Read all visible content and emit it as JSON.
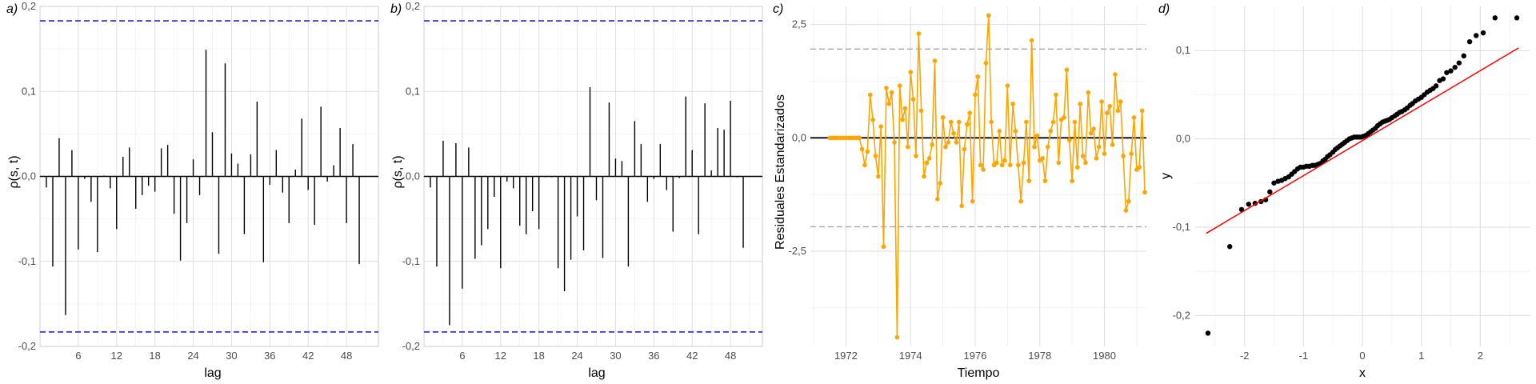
{
  "chart_data": [
    {
      "panel_tag": "a)",
      "type": "bar",
      "xlabel": "lag",
      "ylabel": "ρ(s, t)",
      "xlim": [
        0,
        53
      ],
      "ylim": [
        -0.2,
        0.2
      ],
      "x_ticks": [
        6,
        12,
        18,
        24,
        30,
        36,
        42,
        48
      ],
      "y_ticks": [
        -0.2,
        -0.1,
        0.0,
        0.1,
        0.2
      ],
      "y_tick_labels": [
        "-0,2",
        "-0,1",
        "0,0",
        "0,1",
        "0,2"
      ],
      "x_tick_labels": [
        "6",
        "12",
        "18",
        "24",
        "30",
        "36",
        "42",
        "48"
      ],
      "confidence_bounds": [
        0.183,
        -0.183
      ],
      "confidence_color": "#2626e6",
      "x": [
        1,
        2,
        3,
        4,
        5,
        6,
        7,
        8,
        9,
        10,
        11,
        12,
        13,
        14,
        15,
        16,
        17,
        18,
        19,
        20,
        21,
        22,
        23,
        24,
        25,
        26,
        27,
        28,
        29,
        30,
        31,
        32,
        33,
        34,
        35,
        36,
        37,
        38,
        39,
        40,
        41,
        42,
        43,
        44,
        45,
        46,
        47,
        48,
        49,
        50
      ],
      "values": [
        -0.013,
        -0.106,
        0.045,
        -0.163,
        0.031,
        -0.086,
        -0.003,
        -0.03,
        -0.089,
        0.001,
        -0.014,
        -0.062,
        0.023,
        0.034,
        -0.038,
        -0.022,
        -0.011,
        -0.018,
        0.033,
        0.037,
        -0.044,
        -0.099,
        -0.055,
        0.02,
        -0.022,
        0.149,
        0.052,
        -0.091,
        0.133,
        0.027,
        0.015,
        -0.068,
        0.026,
        0.088,
        -0.101,
        -0.01,
        0.031,
        -0.019,
        -0.055,
        0.008,
        0.068,
        -0.016,
        -0.057,
        0.082,
        -0.006,
        0.013,
        0.057,
        -0.055,
        0.038,
        -0.103
      ]
    },
    {
      "panel_tag": "b)",
      "type": "bar",
      "xlabel": "lag",
      "ylabel": "ρ(s, t)",
      "xlim": [
        0,
        53
      ],
      "ylim": [
        -0.2,
        0.2
      ],
      "x_ticks": [
        6,
        12,
        18,
        24,
        30,
        36,
        42,
        48
      ],
      "y_ticks": [
        -0.2,
        -0.1,
        0.0,
        0.1,
        0.2
      ],
      "y_tick_labels": [
        "-0,2",
        "-0,1",
        "0,0",
        "0,1",
        "0,2"
      ],
      "x_tick_labels": [
        "6",
        "12",
        "18",
        "24",
        "30",
        "36",
        "42",
        "48"
      ],
      "confidence_bounds": [
        0.183,
        -0.183
      ],
      "confidence_color": "#2626e6",
      "x": [
        1,
        2,
        3,
        4,
        5,
        6,
        7,
        8,
        9,
        10,
        11,
        12,
        13,
        14,
        15,
        16,
        17,
        18,
        19,
        20,
        21,
        22,
        23,
        24,
        25,
        26,
        27,
        28,
        29,
        30,
        31,
        32,
        33,
        34,
        35,
        36,
        37,
        38,
        39,
        40,
        41,
        42,
        43,
        44,
        45,
        46,
        47,
        48,
        49,
        50
      ],
      "values": [
        -0.013,
        -0.106,
        0.042,
        -0.175,
        0.039,
        -0.132,
        0.034,
        -0.097,
        -0.081,
        -0.062,
        -0.024,
        -0.108,
        -0.006,
        -0.014,
        -0.058,
        -0.068,
        -0.041,
        -0.062,
        -0.001,
        -0.001,
        -0.108,
        -0.135,
        -0.098,
        -0.047,
        -0.087,
        0.105,
        -0.028,
        -0.096,
        0.087,
        0.021,
        0.018,
        -0.106,
        0.065,
        0.038,
        -0.03,
        -0.003,
        0.038,
        -0.016,
        -0.065,
        -0.002,
        0.094,
        0.031,
        -0.068,
        0.086,
        0.007,
        0.057,
        0.055,
        0.089,
        -0.001,
        -0.084
      ]
    },
    {
      "panel_tag": "c)",
      "type": "line",
      "xlabel": "Tiempo",
      "ylabel": "Residuales Estandarizados",
      "xlim": [
        1970.9,
        1981.3
      ],
      "ylim": [
        -4.6,
        2.9
      ],
      "x_ticks": [
        1972,
        1974,
        1976,
        1978,
        1980
      ],
      "x_tick_labels": [
        "1972",
        "1974",
        "1976",
        "1978",
        "1980"
      ],
      "y_ticks": [
        -2.5,
        0.0,
        2.5
      ],
      "y_tick_labels": [
        "-2,5",
        "0,0",
        "2,5"
      ],
      "reference_lines": [
        1.96,
        -1.96
      ],
      "zero_line": 0,
      "line_color": "#ffa500",
      "x_start": 1971.5,
      "x_step": 0.08333333,
      "values": [
        0,
        0,
        0,
        0,
        0,
        0,
        0,
        0,
        0,
        0,
        0,
        0,
        -0.25,
        -0.6,
        -0.3,
        0.95,
        0.4,
        -0.4,
        -0.85,
        0.25,
        -2.4,
        1.1,
        0.75,
        1.0,
        -0.1,
        -4.4,
        1.15,
        0.4,
        0.65,
        -0.2,
        1.45,
        0.85,
        -0.4,
        2.3,
        0.6,
        -0.85,
        -0.55,
        -0.45,
        -0.15,
        1.7,
        -1.35,
        -1.0,
        0.45,
        -0.2,
        -0.1,
        0.35,
        0.1,
        -0.1,
        0.35,
        -1.5,
        -0.25,
        0.3,
        0.55,
        -1.4,
        0.95,
        1.35,
        -0.6,
        -0.7,
        1.65,
        2.7,
        0.35,
        -0.6,
        -0.55,
        0.15,
        -0.6,
        -0.5,
        1.15,
        -0.6,
        0.75,
        0.15,
        -0.6,
        -1.4,
        -0.55,
        0.35,
        -0.95,
        2.15,
        -0.2,
        0.05,
        -0.5,
        -0.45,
        -0.95,
        -0.2,
        0.15,
        0.35,
        0.95,
        -0.55,
        0.4,
        0.45,
        1.5,
        -0.05,
        -0.95,
        0.35,
        -0.65,
        0.75,
        -0.4,
        -0.55,
        1.0,
        0.1,
        0.2,
        -0.45,
        -0.2,
        0.8,
        -0.35,
        0.55,
        0.7,
        -0.15,
        1.4,
        0.6,
        0.8,
        -0.4,
        -1.6,
        -1.4,
        -0.35,
        0.45,
        -0.7,
        -0.65,
        0.6,
        -1.2
      ]
    },
    {
      "panel_tag": "d)",
      "type": "scatter",
      "xlabel": "x",
      "ylabel": "y",
      "xlim": [
        -2.85,
        2.85
      ],
      "ylim": [
        -0.235,
        0.15
      ],
      "x_ticks": [
        -2,
        -1,
        0,
        1,
        2
      ],
      "x_tick_labels": [
        "-2",
        "-1",
        "0",
        "1",
        "2"
      ],
      "y_ticks": [
        -0.2,
        -0.1,
        0.0,
        0.1
      ],
      "y_tick_labels": [
        "-0,2",
        "-0,1",
        "0,0",
        "0,1"
      ],
      "qq_line": {
        "x": [
          -2.65,
          2.65
        ],
        "y": [
          -0.107,
          0.103
        ]
      },
      "qq_line_color": "#ff0000",
      "x": [
        -2.62,
        -2.25,
        -2.05,
        -1.93,
        -1.82,
        -1.72,
        -1.64,
        -1.57,
        -1.5,
        -1.43,
        -1.37,
        -1.31,
        -1.25,
        -1.2,
        -1.15,
        -1.1,
        -1.05,
        -1.0,
        -0.95,
        -0.9,
        -0.85,
        -0.81,
        -0.76,
        -0.72,
        -0.67,
        -0.63,
        -0.59,
        -0.55,
        -0.5,
        -0.46,
        -0.42,
        -0.38,
        -0.34,
        -0.3,
        -0.26,
        -0.22,
        -0.18,
        -0.14,
        -0.1,
        -0.06,
        -0.02,
        0.02,
        0.06,
        0.1,
        0.14,
        0.18,
        0.22,
        0.26,
        0.3,
        0.34,
        0.38,
        0.42,
        0.46,
        0.5,
        0.55,
        0.59,
        0.63,
        0.67,
        0.72,
        0.76,
        0.81,
        0.85,
        0.9,
        0.95,
        1.0,
        1.05,
        1.1,
        1.15,
        1.2,
        1.25,
        1.31,
        1.37,
        1.43,
        1.5,
        1.57,
        1.64,
        1.72,
        1.82,
        1.93,
        2.05,
        2.25,
        2.62
      ],
      "y": [
        -0.22,
        -0.122,
        -0.08,
        -0.074,
        -0.073,
        -0.071,
        -0.069,
        -0.06,
        -0.05,
        -0.048,
        -0.047,
        -0.045,
        -0.043,
        -0.04,
        -0.037,
        -0.034,
        -0.032,
        -0.032,
        -0.031,
        -0.031,
        -0.03,
        -0.03,
        -0.029,
        -0.028,
        -0.025,
        -0.023,
        -0.02,
        -0.018,
        -0.015,
        -0.012,
        -0.01,
        -0.008,
        -0.006,
        -0.004,
        -0.002,
        0.0,
        0.001,
        0.002,
        0.002,
        0.002,
        0.002,
        0.003,
        0.004,
        0.006,
        0.008,
        0.01,
        0.012,
        0.015,
        0.017,
        0.019,
        0.02,
        0.021,
        0.022,
        0.024,
        0.026,
        0.028,
        0.03,
        0.031,
        0.033,
        0.035,
        0.038,
        0.04,
        0.043,
        0.045,
        0.047,
        0.05,
        0.053,
        0.055,
        0.057,
        0.06,
        0.066,
        0.068,
        0.075,
        0.077,
        0.081,
        0.086,
        0.094,
        0.11,
        0.117,
        0.12,
        0.137,
        0.137
      ]
    }
  ]
}
